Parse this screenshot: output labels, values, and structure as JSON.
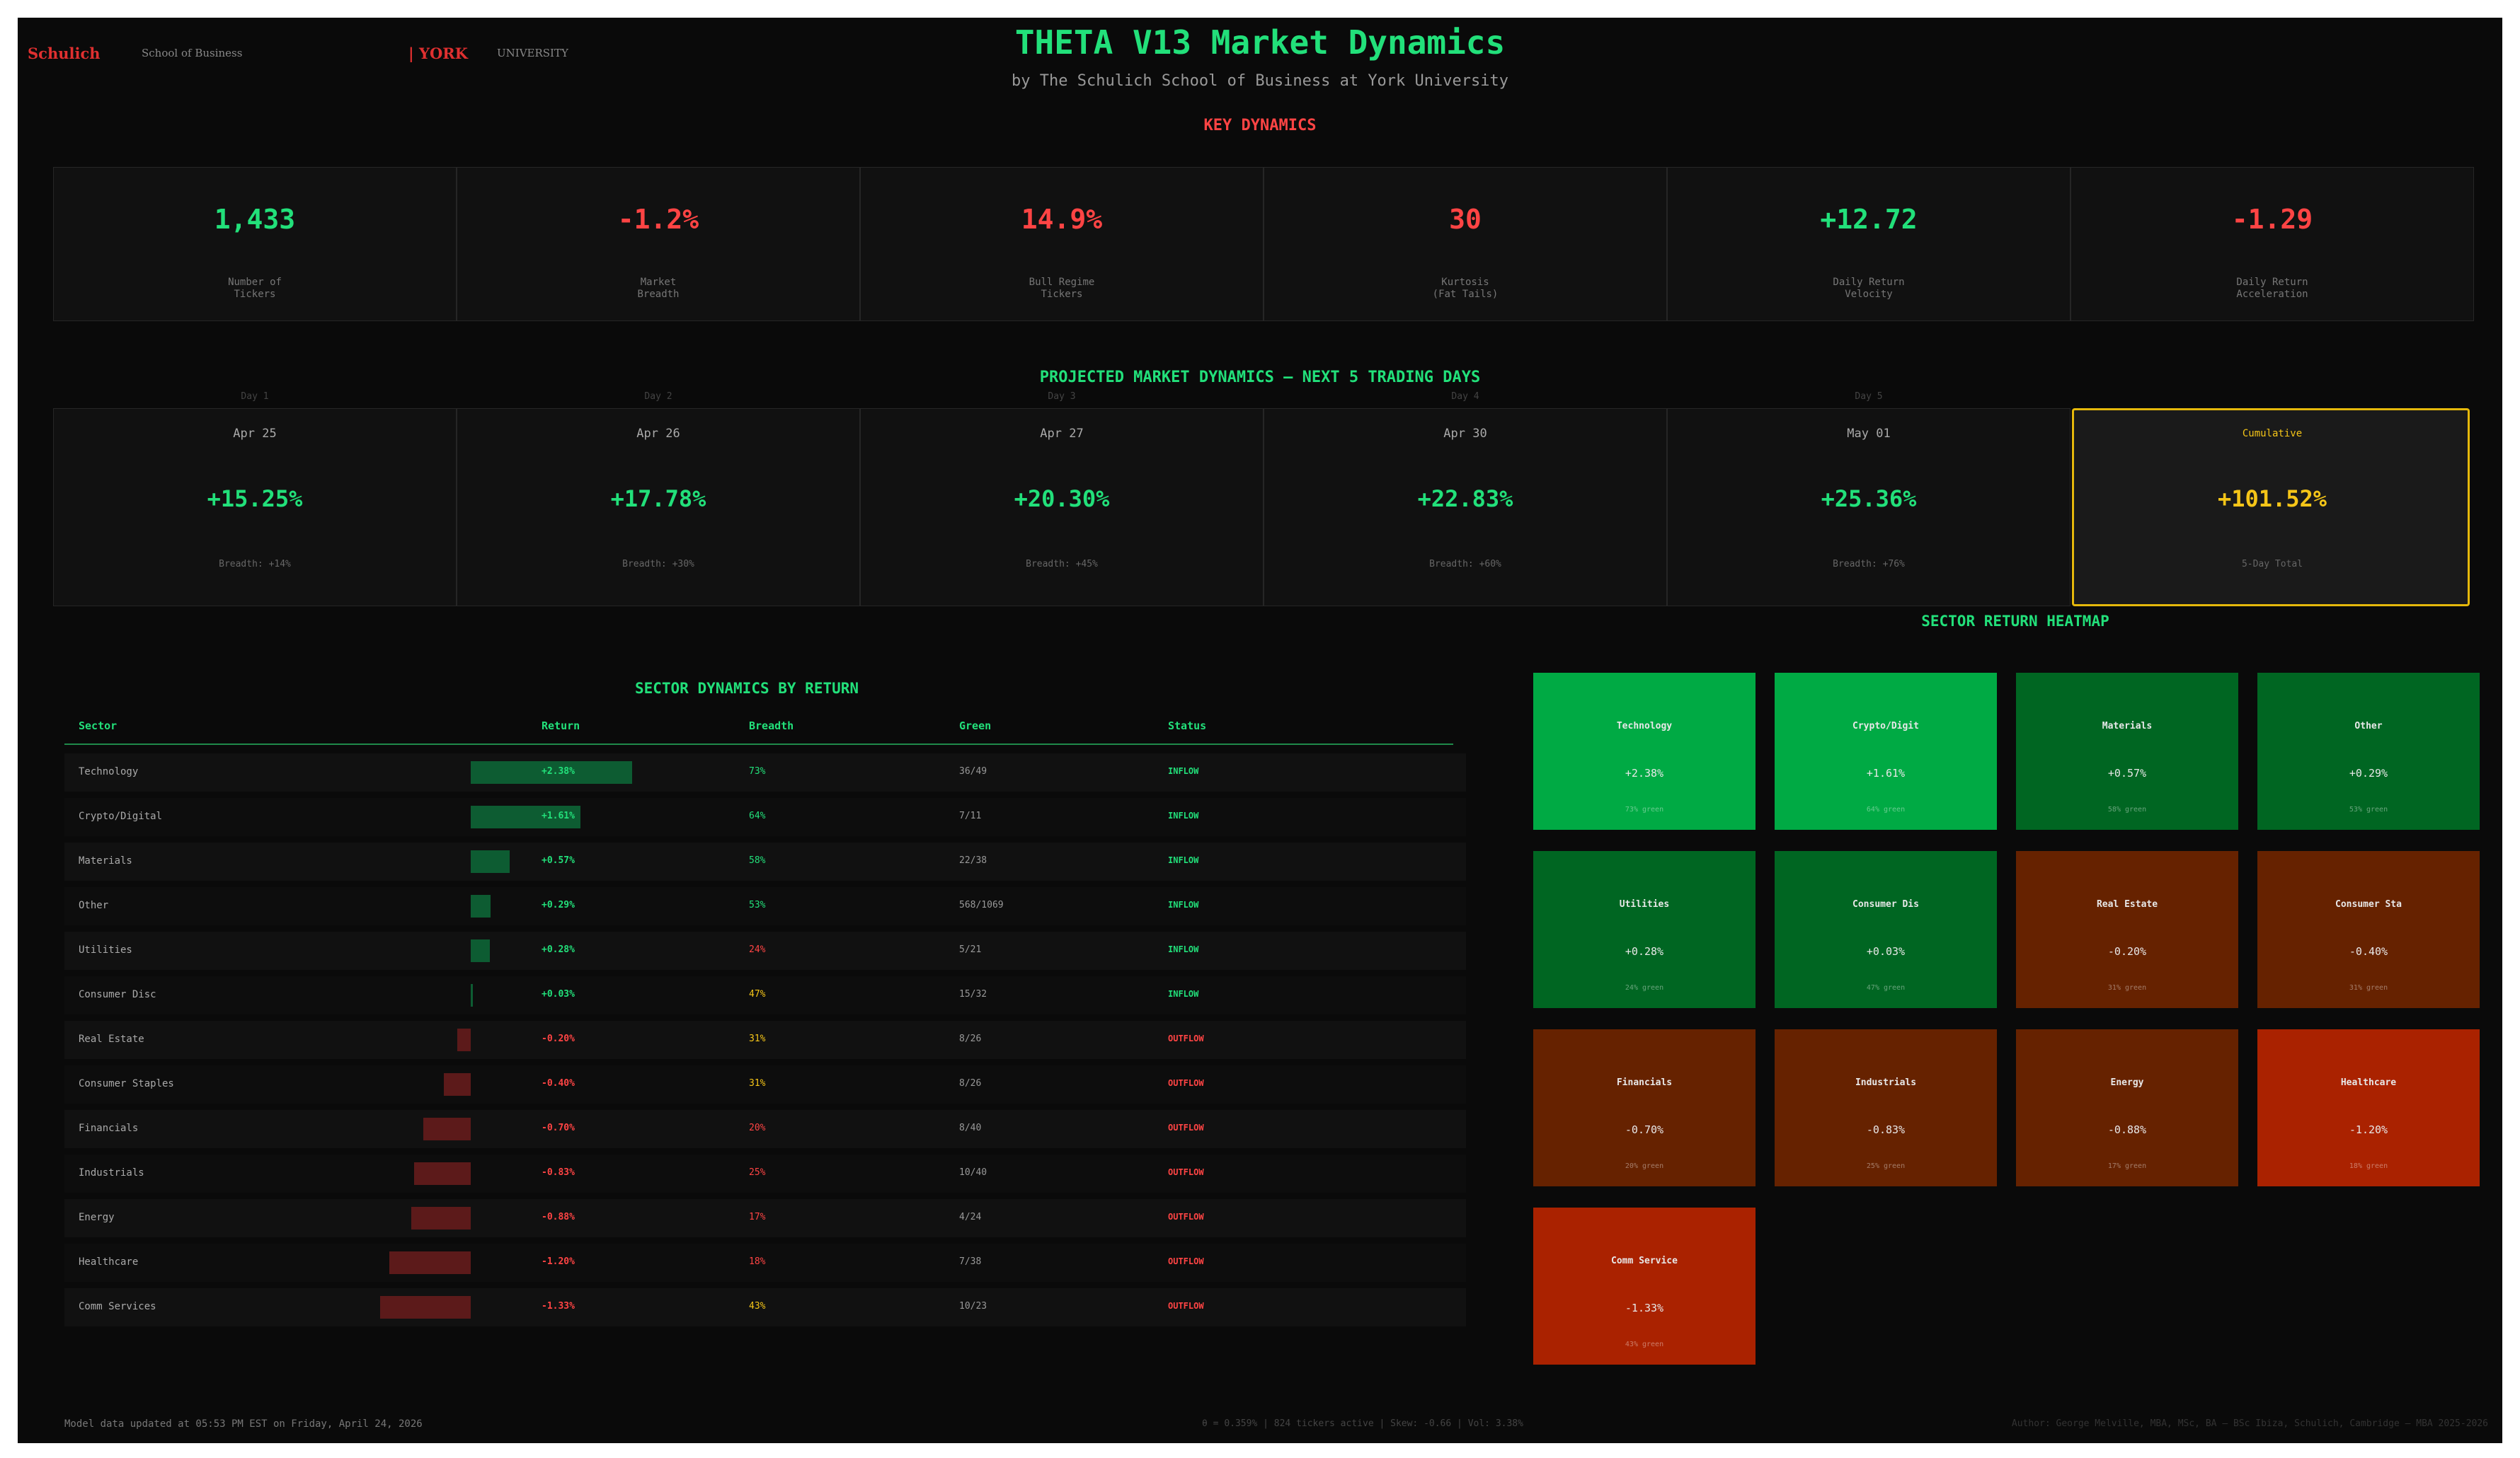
{
  "header": {
    "logo_left": "Schulich",
    "logo_left_sub": "School of Business",
    "logo_right": "| YORK",
    "logo_right_sub": "UNIVERSITY",
    "title": "THETA V13 Market Dynamics",
    "subtitle": "by The Schulich School of Business at York University"
  },
  "key_dynamics": {
    "title": "KEY DYNAMICS",
    "items": [
      {
        "value": "1,433",
        "label": "Number of\nTickers",
        "color": "#22e07a"
      },
      {
        "value": "-1.2%",
        "label": "Market\nBreadth",
        "color": "#ff4444"
      },
      {
        "value": "14.9%",
        "label": "Bull Regime\nTickers",
        "color": "#ff4444"
      },
      {
        "value": "30",
        "label": "Kurtosis\n(Fat Tails)",
        "color": "#ff4444"
      },
      {
        "value": "+12.72",
        "label": "Daily Return\nVelocity",
        "color": "#22e07a"
      },
      {
        "value": "-1.29",
        "label": "Daily Return\nAcceleration",
        "color": "#ff4444"
      }
    ]
  },
  "projection": {
    "title": "PROJECTED MARKET DYNAMICS — NEXT 5 TRADING DAYS",
    "days": [
      {
        "day": "Day 1",
        "date": "Apr 25",
        "value": "+15.25%",
        "breadth": "Breadth: +14%"
      },
      {
        "day": "Day 2",
        "date": "Apr 26",
        "value": "+17.78%",
        "breadth": "Breadth: +30%"
      },
      {
        "day": "Day 3",
        "date": "Apr 27",
        "value": "+20.30%",
        "breadth": "Breadth: +45%"
      },
      {
        "day": "Day 4",
        "date": "Apr 30",
        "value": "+22.83%",
        "breadth": "Breadth: +60%"
      },
      {
        "day": "Day 5",
        "date": "May 01",
        "value": "+25.36%",
        "breadth": "Breadth: +76%"
      }
    ],
    "cumulative": {
      "label": "Cumulative",
      "value": "+101.52%",
      "note": "5-Day Total"
    }
  },
  "sector_table": {
    "title": "SECTOR DYNAMICS BY RETURN",
    "columns": [
      "Sector",
      "Return",
      "Breadth",
      "Green",
      "Status"
    ],
    "rows": [
      {
        "sector": "Technology",
        "return": 2.38,
        "return_label": "+2.38%",
        "breadth": "73%",
        "green": "36/49",
        "status": "INFLOW"
      },
      {
        "sector": "Crypto/Digital",
        "return": 1.61,
        "return_label": "+1.61%",
        "breadth": "64%",
        "green": "7/11",
        "status": "INFLOW"
      },
      {
        "sector": "Materials",
        "return": 0.57,
        "return_label": "+0.57%",
        "breadth": "58%",
        "green": "22/38",
        "status": "INFLOW"
      },
      {
        "sector": "Other",
        "return": 0.29,
        "return_label": "+0.29%",
        "breadth": "53%",
        "green": "568/1069",
        "status": "INFLOW"
      },
      {
        "sector": "Utilities",
        "return": 0.28,
        "return_label": "+0.28%",
        "breadth": "24%",
        "green": "5/21",
        "status": "INFLOW"
      },
      {
        "sector": "Consumer Disc",
        "return": 0.03,
        "return_label": "+0.03%",
        "breadth": "47%",
        "green": "15/32",
        "status": "INFLOW"
      },
      {
        "sector": "Real Estate",
        "return": -0.2,
        "return_label": "-0.20%",
        "breadth": "31%",
        "green": "8/26",
        "status": "OUTFLOW"
      },
      {
        "sector": "Consumer Staples",
        "return": -0.4,
        "return_label": "-0.40%",
        "breadth": "31%",
        "green": "8/26",
        "status": "OUTFLOW"
      },
      {
        "sector": "Financials",
        "return": -0.7,
        "return_label": "-0.70%",
        "breadth": "20%",
        "green": "8/40",
        "status": "OUTFLOW"
      },
      {
        "sector": "Industrials",
        "return": -0.83,
        "return_label": "-0.83%",
        "breadth": "25%",
        "green": "10/40",
        "status": "OUTFLOW"
      },
      {
        "sector": "Energy",
        "return": -0.88,
        "return_label": "-0.88%",
        "breadth": "17%",
        "green": "4/24",
        "status": "OUTFLOW"
      },
      {
        "sector": "Healthcare",
        "return": -1.2,
        "return_label": "-1.20%",
        "breadth": "18%",
        "green": "7/38",
        "status": "OUTFLOW"
      },
      {
        "sector": "Comm Services",
        "return": -1.33,
        "return_label": "-1.33%",
        "breadth": "43%",
        "green": "10/23",
        "status": "OUTFLOW"
      }
    ]
  },
  "heatmap": {
    "title": "SECTOR RETURN HEATMAP",
    "tiles": [
      {
        "name": "Technology",
        "value": "+2.38%",
        "note": "73% green",
        "color": "#00aa44"
      },
      {
        "name": "Crypto/Digit",
        "value": "+1.61%",
        "note": "64% green",
        "color": "#00aa44"
      },
      {
        "name": "Materials",
        "value": "+0.57%",
        "note": "58% green",
        "color": "#006622"
      },
      {
        "name": "Other",
        "value": "+0.29%",
        "note": "53% green",
        "color": "#006622"
      },
      {
        "name": "Utilities",
        "value": "+0.28%",
        "note": "24% green",
        "color": "#006622"
      },
      {
        "name": "Consumer Dis",
        "value": "+0.03%",
        "note": "47% green",
        "color": "#006622"
      },
      {
        "name": "Real Estate",
        "value": "-0.20%",
        "note": "31% green",
        "color": "#662200"
      },
      {
        "name": "Consumer Sta",
        "value": "-0.40%",
        "note": "31% green",
        "color": "#662200"
      },
      {
        "name": "Financials",
        "value": "-0.70%",
        "note": "20% green",
        "color": "#662200"
      },
      {
        "name": "Industrials",
        "value": "-0.83%",
        "note": "25% green",
        "color": "#662200"
      },
      {
        "name": "Energy",
        "value": "-0.88%",
        "note": "17% green",
        "color": "#662200"
      },
      {
        "name": "Healthcare",
        "value": "-1.20%",
        "note": "18% green",
        "color": "#aa2200"
      },
      {
        "name": "Comm Service",
        "value": "-1.33%",
        "note": "43% green",
        "color": "#aa2200"
      }
    ]
  },
  "footer": {
    "left": "Model data updated at 05:53 PM EST on Friday, April 24, 2026",
    "center": "θ = 0.359% | 824 tickers active | Skew: -0.66 | Vol: 3.38%",
    "right": "Author: George Melville, MBA, MSc, BA — BSc Ibiza, Schulich, Cambridge — MBA 2025-2026"
  }
}
